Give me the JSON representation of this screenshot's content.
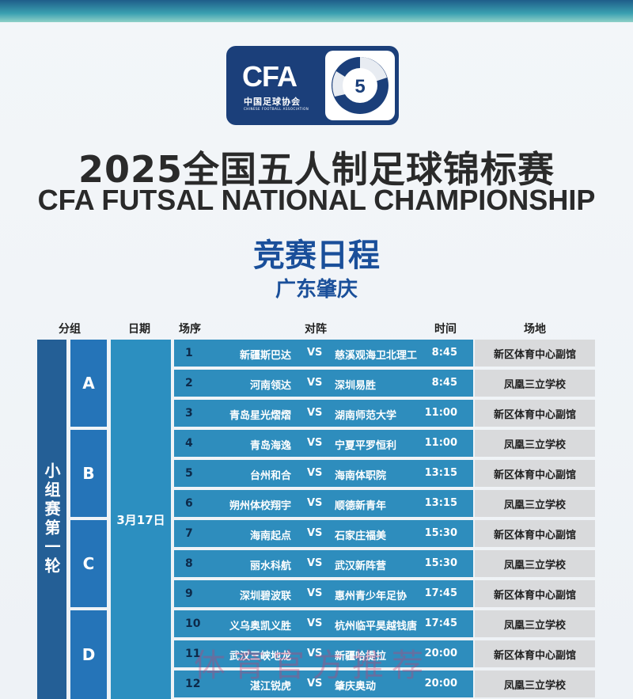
{
  "logo": {
    "cfa": "CFA",
    "cn": "中国足球协会",
    "en": "CHINESE FOOTBALL ASSOCIATION"
  },
  "title_cn": "2025全国五人制足球锦标赛",
  "title_en": "CFA FUTSAL NATIONAL CHAMPIONSHIP",
  "subtitle": "竞赛日程",
  "location": "广东肇庆",
  "headers": {
    "group": "分组",
    "date": "日期",
    "order": "场序",
    "match": "对阵",
    "time": "时间",
    "venue": "场地"
  },
  "stage": "小组赛第一轮",
  "date": "3月17日",
  "groups": [
    "A",
    "B",
    "C",
    "D"
  ],
  "vs": "VS",
  "matches": [
    {
      "no": "1",
      "home": "新疆斯巴达",
      "away": "慈溪观海卫北理工",
      "time": "8:45",
      "venue": "新区体育中心副馆"
    },
    {
      "no": "2",
      "home": "河南领达",
      "away": "深圳易胜",
      "time": "8:45",
      "venue": "凤凰三立学校"
    },
    {
      "no": "3",
      "home": "青岛星光熠熠",
      "away": "湖南师范大学",
      "time": "11:00",
      "venue": "新区体育中心副馆"
    },
    {
      "no": "4",
      "home": "青岛海逸",
      "away": "宁夏平罗恒利",
      "time": "11:00",
      "venue": "凤凰三立学校"
    },
    {
      "no": "5",
      "home": "台州和合",
      "away": "海南体职院",
      "time": "13:15",
      "venue": "新区体育中心副馆"
    },
    {
      "no": "6",
      "home": "朔州体校翔宇",
      "away": "顺德新青年",
      "time": "13:15",
      "venue": "凤凰三立学校"
    },
    {
      "no": "7",
      "home": "海南起点",
      "away": "石家庄福美",
      "time": "15:30",
      "venue": "新区体育中心副馆"
    },
    {
      "no": "8",
      "home": "丽水科航",
      "away": "武汉新阵营",
      "time": "15:30",
      "venue": "凤凰三立学校"
    },
    {
      "no": "9",
      "home": "深圳碧波联",
      "away": "惠州青少年足协",
      "time": "17:45",
      "venue": "新区体育中心副馆"
    },
    {
      "no": "10",
      "home": "义乌奥凯义胜",
      "away": "杭州临平昊越钱唐",
      "time": "17:45",
      "venue": "凤凰三立学校"
    },
    {
      "no": "11",
      "home": "武汉三峡地龙",
      "away": "新疆哈提拉",
      "time": "20:00",
      "venue": "新区体育中心副馆"
    },
    {
      "no": "12",
      "home": "湛江锐虎",
      "away": "肇庆奥动",
      "time": "20:00",
      "venue": "凤凰三立学校"
    }
  ],
  "watermark": "体育官方推荐"
}
